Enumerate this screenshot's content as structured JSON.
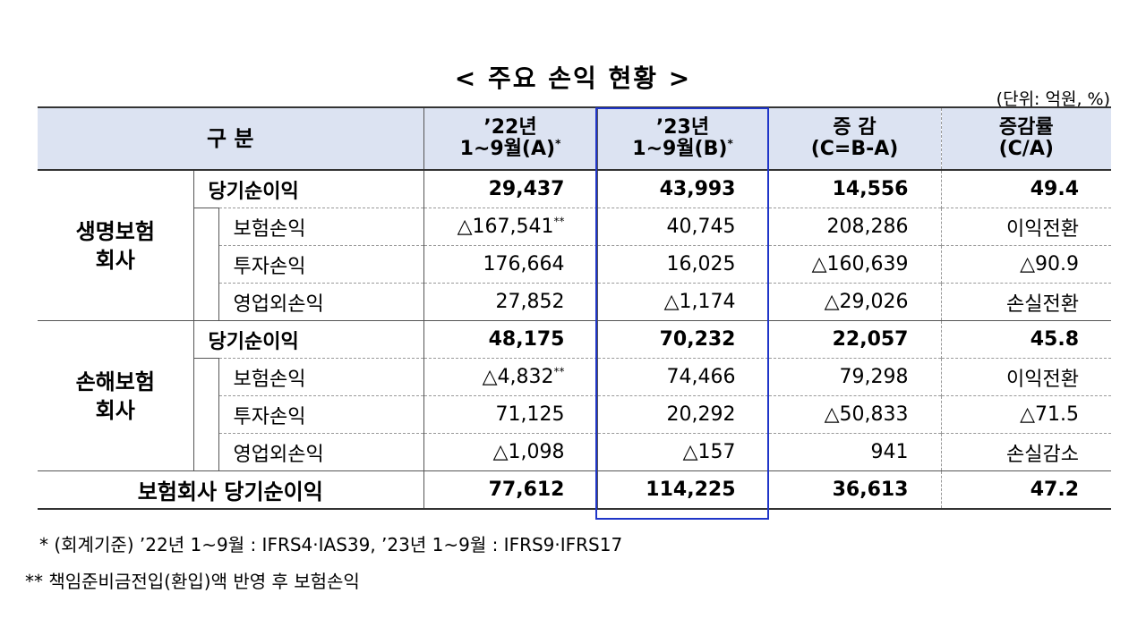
{
  "title": "< 주요 손익 현황 >",
  "unit": "(단위: 억원, %)",
  "header": {
    "category": "구   분",
    "col_a_line1": "’22년",
    "col_a_line2": "1~9월(A)",
    "col_b_line1": "’23년",
    "col_b_line2": "1~9월(B)",
    "col_c_line1": "증 감",
    "col_c_line2": "(C=B-A)",
    "col_d_line1": "증감률",
    "col_d_line2": "(C/A)",
    "star": "*"
  },
  "life": {
    "group": [
      "생명보험",
      "회사"
    ],
    "rows": [
      {
        "label": "당기순이익",
        "a": "29,437",
        "a_sup": "",
        "b": "43,993",
        "c": "14,556",
        "d": "49.4"
      },
      {
        "label": "보험손익",
        "a": "△167,541",
        "a_sup": "**",
        "b": "40,745",
        "c": "208,286",
        "d": "이익전환"
      },
      {
        "label": "투자손익",
        "a": "176,664",
        "a_sup": "",
        "b": "16,025",
        "c": "△160,639",
        "d": "△90.9"
      },
      {
        "label": "영업외손익",
        "a": "27,852",
        "a_sup": "",
        "b": "△1,174",
        "c": "△29,026",
        "d": "손실전환"
      }
    ]
  },
  "nonlife": {
    "group": [
      "손해보험",
      "회사"
    ],
    "rows": [
      {
        "label": "당기순이익",
        "a": "48,175",
        "a_sup": "",
        "b": "70,232",
        "c": "22,057",
        "d": "45.8"
      },
      {
        "label": "보험손익",
        "a": "△4,832",
        "a_sup": "**",
        "b": "74,466",
        "c": "79,298",
        "d": "이익전환"
      },
      {
        "label": "투자손익",
        "a": "71,125",
        "a_sup": "",
        "b": "20,292",
        "c": "△50,833",
        "d": "△71.5"
      },
      {
        "label": "영업외손익",
        "a": "△1,098",
        "a_sup": "",
        "b": "△157",
        "c": "941",
        "d": "손실감소"
      }
    ]
  },
  "total": {
    "label": "보험회사  당기순이익",
    "a": "77,612",
    "b": "114,225",
    "c": "36,613",
    "d": "47.2"
  },
  "notes": [
    "*  (회계기준)  ’22년  1~9월  :  IFRS4·IAS39,  ’23년  1~9월  :  IFRS9·IFRS17",
    "**  책임준비금전입(환입)액  반영  후  보험손익"
  ]
}
